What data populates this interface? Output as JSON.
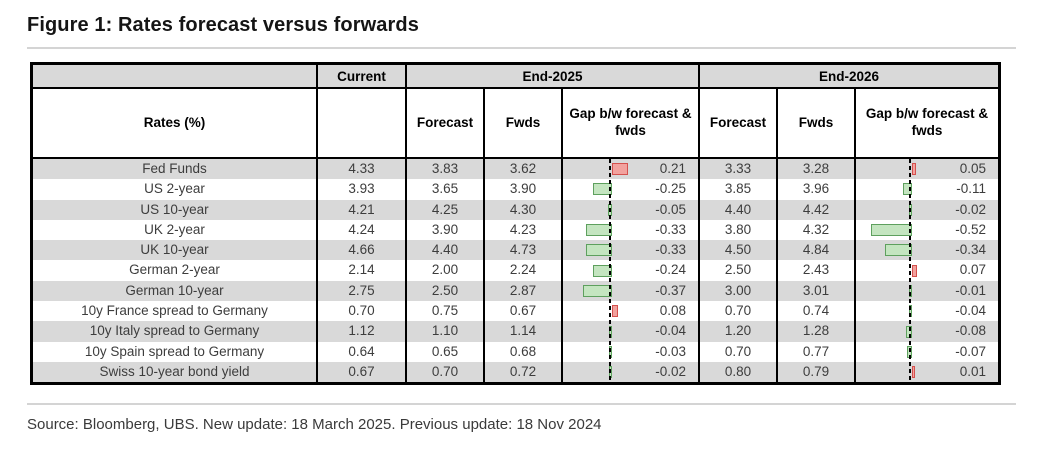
{
  "title": "Figure 1: Rates forecast versus forwards",
  "source_note": "Source: Bloomberg, UBS. New update: 18 March 2025. Previous update: 18 Nov 2024",
  "table": {
    "corner_header": "Rates (%)",
    "col_headers": {
      "current": "Current",
      "end2025": "End-2025",
      "end2026": "End-2026",
      "forecast": "Forecast",
      "fwds": "Fwds",
      "gap": "Gap b/w forecast & fwds"
    }
  },
  "chart_data": {
    "type": "table",
    "title": "Figure 1: Rates forecast versus forwards",
    "groups": [
      "Current",
      "End-2025",
      "End-2026"
    ],
    "subcolumns": [
      "Forecast",
      "Fwds",
      "Gap b/w forecast & fwds"
    ],
    "gap_bar_style": {
      "zero_axis": "vertical dashed black line",
      "positive_direction": "right",
      "negative_direction": "left",
      "positive_fill": "#f2a29e",
      "positive_border": "#d4514e",
      "negative_fill": "#c4e5c0",
      "negative_border": "#5ea05e"
    },
    "rows": [
      {
        "label": "Fed Funds",
        "current": 4.33,
        "f2025": 3.83,
        "w2025": 3.62,
        "g2025": 0.21,
        "f2026": 3.33,
        "w2026": 3.28,
        "g2026": 0.05
      },
      {
        "label": "US 2-year",
        "current": 3.93,
        "f2025": 3.65,
        "w2025": 3.9,
        "g2025": -0.25,
        "f2026": 3.85,
        "w2026": 3.96,
        "g2026": -0.11
      },
      {
        "label": "US 10-year",
        "current": 4.21,
        "f2025": 4.25,
        "w2025": 4.3,
        "g2025": -0.05,
        "f2026": 4.4,
        "w2026": 4.42,
        "g2026": -0.02
      },
      {
        "label": "UK 2-year",
        "current": 4.24,
        "f2025": 3.9,
        "w2025": 4.23,
        "g2025": -0.33,
        "f2026": 3.8,
        "w2026": 4.32,
        "g2026": -0.52
      },
      {
        "label": "UK 10-year",
        "current": 4.66,
        "f2025": 4.4,
        "w2025": 4.73,
        "g2025": -0.33,
        "f2026": 4.5,
        "w2026": 4.84,
        "g2026": -0.34
      },
      {
        "label": "German 2-year",
        "current": 2.14,
        "f2025": 2.0,
        "w2025": 2.24,
        "g2025": -0.24,
        "f2026": 2.5,
        "w2026": 2.43,
        "g2026": 0.07
      },
      {
        "label": "German 10-year",
        "current": 2.75,
        "f2025": 2.5,
        "w2025": 2.87,
        "g2025": -0.37,
        "f2026": 3.0,
        "w2026": 3.01,
        "g2026": -0.01
      },
      {
        "label": "10y France spread to Germany",
        "current": 0.7,
        "f2025": 0.75,
        "w2025": 0.67,
        "g2025": 0.08,
        "f2026": 0.7,
        "w2026": 0.74,
        "g2026": -0.04
      },
      {
        "label": "10y Italy spread to Germany",
        "current": 1.12,
        "f2025": 1.1,
        "w2025": 1.14,
        "g2025": -0.04,
        "f2026": 1.2,
        "w2026": 1.28,
        "g2026": -0.08
      },
      {
        "label": "10y Spain spread to Germany",
        "current": 0.64,
        "f2025": 0.65,
        "w2025": 0.68,
        "g2025": -0.03,
        "f2026": 0.7,
        "w2026": 0.77,
        "g2026": -0.07
      },
      {
        "label": "Swiss 10-year bond yield",
        "current": 0.67,
        "f2025": 0.7,
        "w2025": 0.72,
        "g2025": -0.02,
        "f2026": 0.8,
        "w2026": 0.79,
        "g2026": 0.01
      }
    ]
  }
}
